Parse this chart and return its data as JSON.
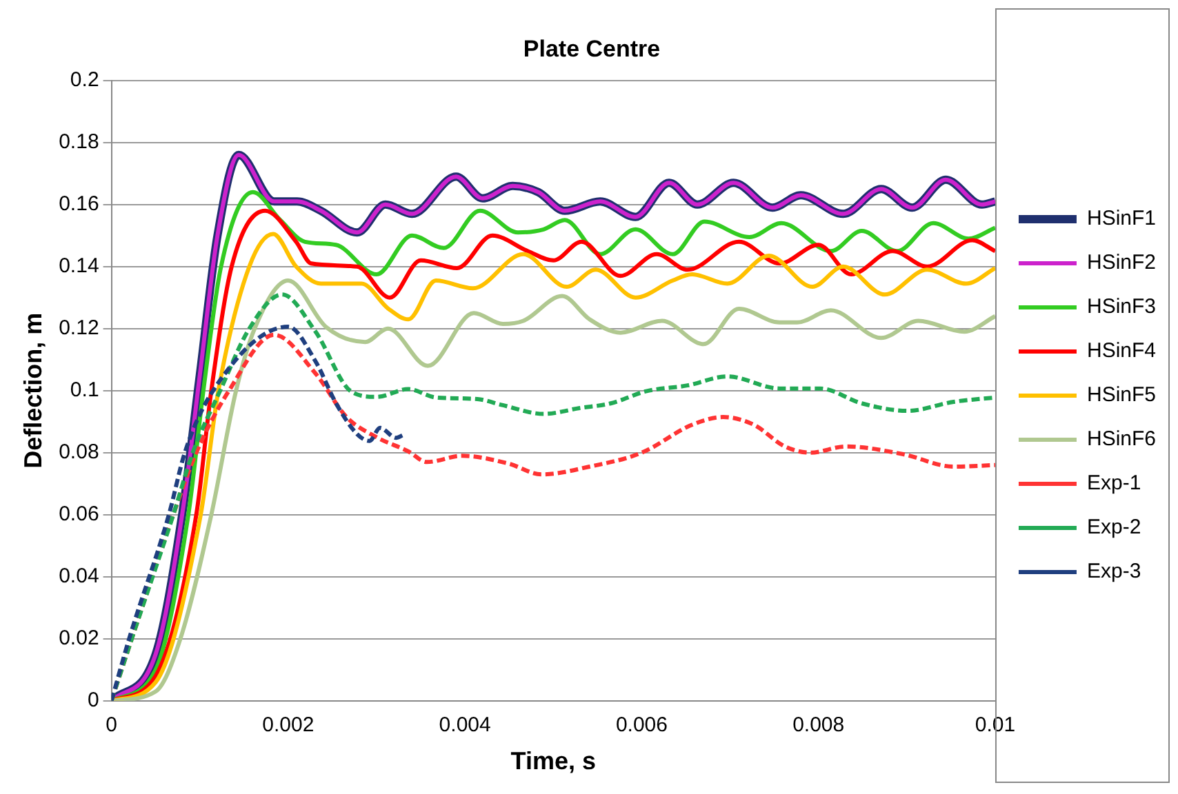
{
  "chart_data": {
    "type": "line",
    "title": "Plate Centre",
    "xlabel": "Time, s",
    "ylabel": "Deflection, m",
    "xlim": [
      0,
      0.01
    ],
    "xticks": [
      0,
      0.002,
      0.004,
      0.006,
      0.008,
      0.01
    ],
    "ylim": [
      0,
      0.2
    ],
    "yticks": [
      0,
      0.02,
      0.04,
      0.06,
      0.08,
      0.1,
      0.12,
      0.14,
      0.16,
      0.18,
      0.2
    ],
    "grid": "y",
    "legend": "right",
    "marker": "none",
    "series": [
      {
        "name": "HSinF1",
        "color": "#1f2f6e",
        "line_style": "solid",
        "x": [
          0,
          0.0005,
          0.0008,
          0.001,
          0.0012,
          0.00144,
          0.00184,
          0.0021,
          0.00237,
          0.00278,
          0.0031,
          0.0034,
          0.0039,
          0.0042,
          0.00454,
          0.00483,
          0.00513,
          0.00553,
          0.00593,
          0.00631,
          0.00663,
          0.00704,
          0.00748,
          0.0078,
          0.00828,
          0.00871,
          0.00906,
          0.00944,
          0.00985,
          0.01
        ],
        "values": [
          0,
          0.015,
          0.06,
          0.105,
          0.15,
          0.176,
          0.161,
          0.161,
          0.158,
          0.151,
          0.16,
          0.157,
          0.169,
          0.162,
          0.166,
          0.164,
          0.158,
          0.161,
          0.156,
          0.167,
          0.16,
          0.167,
          0.159,
          0.163,
          0.157,
          0.165,
          0.159,
          0.168,
          0.16,
          0.161
        ]
      },
      {
        "name": "HSinF2",
        "color": "#cc22cc",
        "line_style": "solid",
        "x": [
          0,
          0.0005,
          0.0008,
          0.001,
          0.0012,
          0.00144,
          0.00184,
          0.0021,
          0.00237,
          0.00278,
          0.0031,
          0.0034,
          0.0039,
          0.0042,
          0.00454,
          0.00483,
          0.00513,
          0.00553,
          0.00593,
          0.00631,
          0.00663,
          0.00704,
          0.00748,
          0.0078,
          0.00828,
          0.00871,
          0.00906,
          0.00944,
          0.00985,
          0.01
        ],
        "values": [
          0,
          0.015,
          0.06,
          0.105,
          0.15,
          0.176,
          0.161,
          0.161,
          0.158,
          0.151,
          0.16,
          0.157,
          0.169,
          0.162,
          0.166,
          0.164,
          0.158,
          0.161,
          0.156,
          0.167,
          0.16,
          0.167,
          0.159,
          0.163,
          0.157,
          0.165,
          0.159,
          0.168,
          0.16,
          0.161
        ]
      },
      {
        "name": "HSinF3",
        "color": "#33cc22",
        "line_style": "solid",
        "x": [
          0,
          0.0005,
          0.00087,
          0.00104,
          0.00124,
          0.0016,
          0.00191,
          0.00219,
          0.00254,
          0.003,
          0.0034,
          0.00376,
          0.00417,
          0.0046,
          0.00489,
          0.00513,
          0.00553,
          0.00593,
          0.00635,
          0.00671,
          0.00722,
          0.00758,
          0.00814,
          0.00849,
          0.00889,
          0.0093,
          0.0097,
          0.01
        ],
        "values": [
          0,
          0.01,
          0.06,
          0.1,
          0.14,
          0.164,
          0.155,
          0.148,
          0.147,
          0.1375,
          0.15,
          0.146,
          0.158,
          0.151,
          0.152,
          0.155,
          0.144,
          0.152,
          0.144,
          0.1545,
          0.1495,
          0.154,
          0.145,
          0.1515,
          0.145,
          0.154,
          0.149,
          0.1525
        ]
      },
      {
        "name": "HSinF4",
        "color": "#ff0000",
        "line_style": "solid",
        "x": [
          0,
          0.0005,
          0.00096,
          0.00113,
          0.00136,
          0.00174,
          0.00209,
          0.00226,
          0.00278,
          0.00315,
          0.0035,
          0.00391,
          0.00431,
          0.00471,
          0.005,
          0.00532,
          0.00576,
          0.00617,
          0.00652,
          0.0071,
          0.00756,
          0.008,
          0.00837,
          0.00884,
          0.00923,
          0.00974,
          0.01
        ],
        "values": [
          0,
          0.008,
          0.06,
          0.1,
          0.14,
          0.158,
          0.148,
          0.141,
          0.14,
          0.13,
          0.142,
          0.1395,
          0.15,
          0.145,
          0.142,
          0.148,
          0.137,
          0.144,
          0.139,
          0.148,
          0.141,
          0.147,
          0.1375,
          0.145,
          0.14,
          0.1485,
          0.145
        ]
      },
      {
        "name": "HSinF5",
        "color": "#ffc000",
        "line_style": "solid",
        "x": [
          0,
          0.0005,
          0.00101,
          0.00121,
          0.00156,
          0.00183,
          0.00209,
          0.00237,
          0.00283,
          0.00313,
          0.00336,
          0.00367,
          0.00409,
          0.00466,
          0.00515,
          0.00548,
          0.00593,
          0.00635,
          0.00657,
          0.00697,
          0.00744,
          0.00793,
          0.00828,
          0.00875,
          0.00923,
          0.00967,
          0.01
        ],
        "values": [
          0,
          0.006,
          0.06,
          0.1,
          0.14,
          0.1505,
          0.14,
          0.1345,
          0.1345,
          0.1265,
          0.123,
          0.1355,
          0.133,
          0.144,
          0.1335,
          0.139,
          0.13,
          0.1355,
          0.1375,
          0.1345,
          0.1435,
          0.1335,
          0.14,
          0.131,
          0.139,
          0.1345,
          0.1395
        ]
      },
      {
        "name": "HSinF6",
        "color": "#b0c890",
        "line_style": "solid",
        "x": [
          0,
          0.0005,
          0.00078,
          0.00113,
          0.00141,
          0.00162,
          0.002,
          0.00243,
          0.00287,
          0.00313,
          0.00358,
          0.0041,
          0.00443,
          0.00466,
          0.0051,
          0.00541,
          0.00576,
          0.00623,
          0.0067,
          0.0071,
          0.00756,
          0.00776,
          0.00814,
          0.00871,
          0.00913,
          0.00965,
          0.01
        ],
        "values": [
          0,
          0.003,
          0.02,
          0.06,
          0.1,
          0.12,
          0.1355,
          0.1205,
          0.1157,
          0.12,
          0.108,
          0.125,
          0.1215,
          0.1225,
          0.1305,
          0.123,
          0.1187,
          0.1225,
          0.115,
          0.1264,
          0.122,
          0.122,
          0.1259,
          0.117,
          0.1225,
          0.119,
          0.124
        ]
      },
      {
        "name": "Exp-1",
        "color": "#ff3333",
        "line_style": "dashed",
        "x": [
          0,
          0.00023,
          0.0007,
          0.00096,
          0.00133,
          0.00184,
          0.00231,
          0.00266,
          0.003,
          0.00336,
          0.00357,
          0.00397,
          0.00449,
          0.00487,
          0.00541,
          0.006,
          0.00657,
          0.00692,
          0.00727,
          0.00762,
          0.00791,
          0.00831,
          0.00896,
          0.00953,
          0.01
        ],
        "values": [
          0,
          0.02,
          0.06,
          0.08,
          0.1,
          0.118,
          0.1055,
          0.0915,
          0.085,
          0.0804,
          0.077,
          0.079,
          0.0765,
          0.073,
          0.0755,
          0.08,
          0.089,
          0.0915,
          0.089,
          0.082,
          0.08,
          0.082,
          0.0795,
          0.0755,
          0.076
        ]
      },
      {
        "name": "Exp-2",
        "color": "#22aa55",
        "line_style": "dashed",
        "x": [
          0,
          0.00023,
          0.0007,
          0.00092,
          0.00123,
          0.00156,
          0.00193,
          0.00231,
          0.00271,
          0.003,
          0.00336,
          0.00367,
          0.00414,
          0.00443,
          0.00489,
          0.0053,
          0.00565,
          0.00605,
          0.00652,
          0.00697,
          0.00756,
          0.00802,
          0.00849,
          0.00901,
          0.00953,
          0.01
        ],
        "values": [
          0,
          0.02,
          0.06,
          0.08,
          0.1,
          0.12,
          0.131,
          0.119,
          0.0998,
          0.098,
          0.1005,
          0.0978,
          0.0973,
          0.0953,
          0.0925,
          0.0944,
          0.0959,
          0.0998,
          0.1017,
          0.1046,
          0.1007,
          0.1007,
          0.0959,
          0.0935,
          0.0964,
          0.0978
        ]
      },
      {
        "name": "Exp-3",
        "color": "#1f3f7f",
        "line_style": "dashed",
        "x": [
          0,
          0.0002,
          0.00065,
          0.00083,
          0.00115,
          0.002,
          0.00231,
          0.00254,
          0.00278,
          0.00292,
          0.00304,
          0.00322,
          0.0033
        ],
        "values": [
          0,
          0.02,
          0.06,
          0.08,
          0.1,
          0.1206,
          0.1094,
          0.096,
          0.086,
          0.0838,
          0.088,
          0.0848,
          0.0857
        ]
      }
    ]
  }
}
